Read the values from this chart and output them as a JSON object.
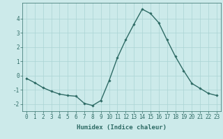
{
  "x": [
    0,
    1,
    2,
    3,
    4,
    5,
    6,
    7,
    8,
    9,
    10,
    11,
    12,
    13,
    14,
    15,
    16,
    17,
    18,
    19,
    20,
    21,
    22,
    23
  ],
  "y": [
    -0.2,
    -0.5,
    -0.85,
    -1.1,
    -1.3,
    -1.4,
    -1.45,
    -1.95,
    -2.1,
    -1.75,
    -0.35,
    1.25,
    2.5,
    3.6,
    4.65,
    4.35,
    3.7,
    2.5,
    1.35,
    0.35,
    -0.55,
    -0.9,
    -1.25,
    -1.4
  ],
  "line_color": "#2e6b65",
  "marker": "D",
  "marker_size": 1.8,
  "linewidth": 1.0,
  "xlabel": "Humidex (Indice chaleur)",
  "ylim": [
    -2.5,
    5.1
  ],
  "xlim": [
    -0.5,
    23.5
  ],
  "yticks": [
    -2,
    -1,
    0,
    1,
    2,
    3,
    4
  ],
  "xticks": [
    0,
    1,
    2,
    3,
    4,
    5,
    6,
    7,
    8,
    9,
    10,
    11,
    12,
    13,
    14,
    15,
    16,
    17,
    18,
    19,
    20,
    21,
    22,
    23
  ],
  "bg_color": "#cceaea",
  "grid_color": "#aad4d4",
  "tick_color": "#2e6b65",
  "label_color": "#2e6b65",
  "xlabel_fontsize": 6.5,
  "tick_fontsize": 5.5
}
